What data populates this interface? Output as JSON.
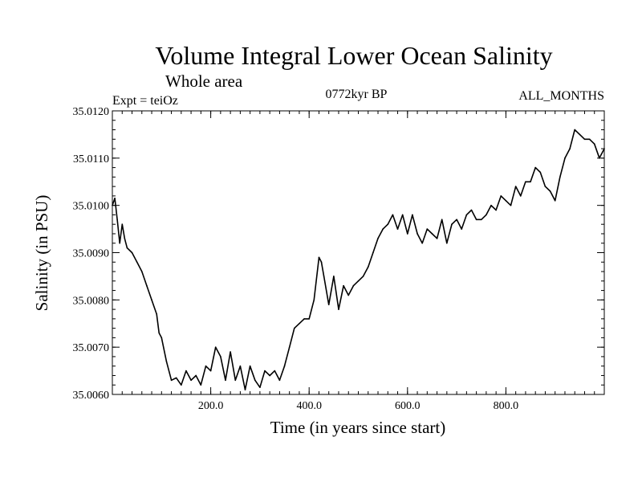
{
  "chart_data": {
    "type": "line",
    "title": "Volume Integral Lower Ocean Salinity",
    "subtitle": "Whole area",
    "experiment": "Expt = teiOz",
    "period": "0772kyr BP",
    "months": "ALL_MONTHS",
    "xlabel": "Time (in years since start)",
    "ylabel": "Salinity (in PSU)",
    "xlim": [
      0,
      1000
    ],
    "ylim": [
      35.006,
      35.012
    ],
    "x_ticks": [
      200.0,
      400.0,
      600.0,
      800.0
    ],
    "x_tick_labels": [
      "200.0",
      "400.0",
      "600.0",
      "800.0"
    ],
    "y_ticks": [
      35.006,
      35.007,
      35.008,
      35.009,
      35.01,
      35.011,
      35.012
    ],
    "y_tick_labels": [
      "35.0060",
      "35.0070",
      "35.0080",
      "35.0090",
      "35.0100",
      "35.0110",
      "35.0120"
    ],
    "grid": false,
    "series": [
      {
        "name": "Salinity",
        "color": "#000000",
        "x": [
          0,
          5,
          10,
          15,
          20,
          25,
          30,
          40,
          50,
          60,
          70,
          80,
          90,
          95,
          100,
          110,
          120,
          130,
          140,
          150,
          160,
          170,
          180,
          190,
          200,
          210,
          220,
          230,
          240,
          250,
          260,
          270,
          280,
          290,
          300,
          310,
          320,
          330,
          340,
          350,
          360,
          370,
          380,
          390,
          400,
          410,
          420,
          425,
          430,
          440,
          450,
          460,
          470,
          480,
          490,
          500,
          510,
          520,
          530,
          540,
          550,
          560,
          570,
          580,
          590,
          600,
          610,
          620,
          630,
          640,
          650,
          660,
          670,
          680,
          690,
          700,
          710,
          720,
          730,
          740,
          750,
          760,
          770,
          780,
          790,
          800,
          810,
          820,
          830,
          840,
          850,
          860,
          870,
          880,
          890,
          900,
          910,
          920,
          930,
          940,
          950,
          960,
          970,
          980,
          990,
          1000
        ],
        "values": [
          35.01,
          35.01015,
          35.0097,
          35.0092,
          35.0096,
          35.0093,
          35.0091,
          35.009,
          35.0088,
          35.0086,
          35.0083,
          35.008,
          35.0077,
          35.0073,
          35.0072,
          35.0067,
          35.0063,
          35.00635,
          35.0062,
          35.0065,
          35.0063,
          35.0064,
          35.0062,
          35.0066,
          35.0065,
          35.007,
          35.0068,
          35.0063,
          35.0069,
          35.0063,
          35.0066,
          35.0061,
          35.0066,
          35.0063,
          35.00615,
          35.0065,
          35.0064,
          35.0065,
          35.0063,
          35.0066,
          35.007,
          35.0074,
          35.0075,
          35.0076,
          35.0076,
          35.008,
          35.0089,
          35.0088,
          35.0085,
          35.0079,
          35.0085,
          35.0078,
          35.0083,
          35.0081,
          35.0083,
          35.0084,
          35.0085,
          35.0087,
          35.009,
          35.0093,
          35.0095,
          35.0096,
          35.0098,
          35.0095,
          35.0098,
          35.0094,
          35.0098,
          35.0094,
          35.0092,
          35.0095,
          35.0094,
          35.0093,
          35.0097,
          35.0092,
          35.0096,
          35.0097,
          35.0095,
          35.0098,
          35.0099,
          35.0097,
          35.0097,
          35.0098,
          35.01,
          35.0099,
          35.0102,
          35.0101,
          35.01,
          35.0104,
          35.0102,
          35.0105,
          35.0105,
          35.0108,
          35.0107,
          35.0104,
          35.0103,
          35.0101,
          35.0106,
          35.011,
          35.0112,
          35.0116,
          35.0115,
          35.0114,
          35.0114,
          35.0113,
          35.011,
          35.0112
        ]
      }
    ]
  }
}
